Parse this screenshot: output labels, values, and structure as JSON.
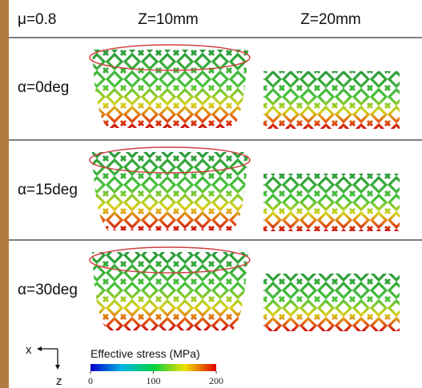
{
  "header": {
    "corner": "μ=0.8",
    "columns": [
      "Z=10mm",
      "Z=20mm"
    ]
  },
  "rows": [
    {
      "label": "α=0deg"
    },
    {
      "label": "α=15deg"
    },
    {
      "label": "α=30deg"
    }
  ],
  "axes": {
    "x": "x",
    "z": "z"
  },
  "colorbar": {
    "title": "Effective stress (MPa)",
    "lim": [
      0,
      200
    ],
    "ticks": [
      0,
      100,
      200
    ]
  }
}
